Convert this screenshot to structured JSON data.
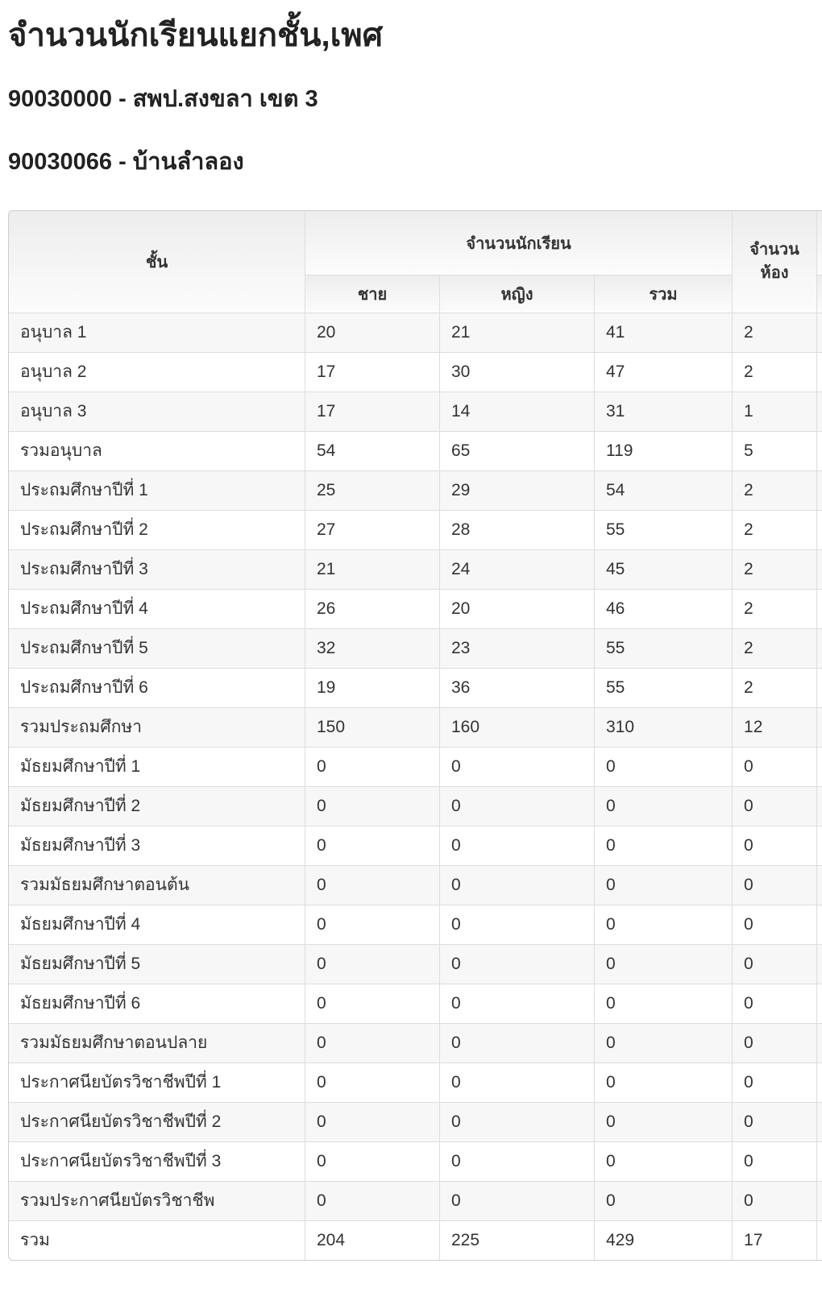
{
  "page": {
    "title": "จำนวนนักเรียนแยกชั้น,เพศ",
    "district_line": "90030000 - สพป.สงขลา เขต 3",
    "school_line": "90030066 - บ้านลำลอง"
  },
  "table": {
    "header": {
      "class_col": "ชั้น",
      "students_group": "จำนวนนักเรียน",
      "male": "ชาย",
      "female": "หญิง",
      "total": "รวม",
      "rooms": "จำนวน\nห้อง"
    },
    "rows": [
      {
        "label": "อนุบาล 1",
        "male": 20,
        "female": 21,
        "total": 41,
        "rooms": 2
      },
      {
        "label": "อนุบาล 2",
        "male": 17,
        "female": 30,
        "total": 47,
        "rooms": 2
      },
      {
        "label": "อนุบาล 3",
        "male": 17,
        "female": 14,
        "total": 31,
        "rooms": 1
      },
      {
        "label": "รวมอนุบาล",
        "male": 54,
        "female": 65,
        "total": 119,
        "rooms": 5
      },
      {
        "label": "ประถมศึกษาปีที่ 1",
        "male": 25,
        "female": 29,
        "total": 54,
        "rooms": 2
      },
      {
        "label": "ประถมศึกษาปีที่ 2",
        "male": 27,
        "female": 28,
        "total": 55,
        "rooms": 2
      },
      {
        "label": "ประถมศึกษาปีที่ 3",
        "male": 21,
        "female": 24,
        "total": 45,
        "rooms": 2
      },
      {
        "label": "ประถมศึกษาปีที่ 4",
        "male": 26,
        "female": 20,
        "total": 46,
        "rooms": 2
      },
      {
        "label": "ประถมศึกษาปีที่ 5",
        "male": 32,
        "female": 23,
        "total": 55,
        "rooms": 2
      },
      {
        "label": "ประถมศึกษาปีที่ 6",
        "male": 19,
        "female": 36,
        "total": 55,
        "rooms": 2
      },
      {
        "label": "รวมประถมศึกษา",
        "male": 150,
        "female": 160,
        "total": 310,
        "rooms": 12
      },
      {
        "label": "มัธยมศึกษาปีที่ 1",
        "male": 0,
        "female": 0,
        "total": 0,
        "rooms": 0
      },
      {
        "label": "มัธยมศึกษาปีที่ 2",
        "male": 0,
        "female": 0,
        "total": 0,
        "rooms": 0
      },
      {
        "label": "มัธยมศึกษาปีที่ 3",
        "male": 0,
        "female": 0,
        "total": 0,
        "rooms": 0
      },
      {
        "label": "รวมมัธยมศึกษาตอนต้น",
        "male": 0,
        "female": 0,
        "total": 0,
        "rooms": 0
      },
      {
        "label": "มัธยมศึกษาปีที่ 4",
        "male": 0,
        "female": 0,
        "total": 0,
        "rooms": 0
      },
      {
        "label": "มัธยมศึกษาปีที่ 5",
        "male": 0,
        "female": 0,
        "total": 0,
        "rooms": 0
      },
      {
        "label": "มัธยมศึกษาปีที่ 6",
        "male": 0,
        "female": 0,
        "total": 0,
        "rooms": 0
      },
      {
        "label": "รวมมัธยมศึกษาตอนปลาย",
        "male": 0,
        "female": 0,
        "total": 0,
        "rooms": 0
      },
      {
        "label": "ประกาศนียบัตรวิชาชีพปีที่ 1",
        "male": 0,
        "female": 0,
        "total": 0,
        "rooms": 0
      },
      {
        "label": "ประกาศนียบัตรวิชาชีพปีที่ 2",
        "male": 0,
        "female": 0,
        "total": 0,
        "rooms": 0
      },
      {
        "label": "ประกาศนียบัตรวิชาชีพปีที่ 3",
        "male": 0,
        "female": 0,
        "total": 0,
        "rooms": 0
      },
      {
        "label": "รวมประกาศนียบัตรวิชาชีพ",
        "male": 0,
        "female": 0,
        "total": 0,
        "rooms": 0
      },
      {
        "label": "รวม",
        "male": 204,
        "female": 225,
        "total": 429,
        "rooms": 17
      }
    ]
  },
  "colors": {
    "stripe_row": "#f7f7f7",
    "border": "#dddddd",
    "outer_border": "#cccccc",
    "header_gradient_top": "#ededed",
    "header_gradient_bottom": "#fcfcfc",
    "text": "#333333",
    "heading_text": "#222222"
  }
}
